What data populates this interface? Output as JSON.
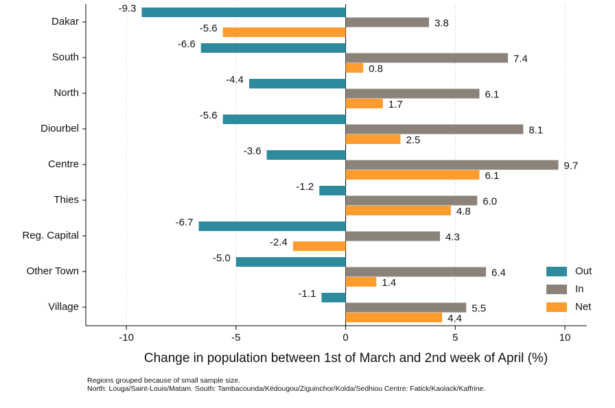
{
  "chart_data": {
    "type": "hbar",
    "xlabel": "Change in population between 1st of March and 2nd week of April (%)",
    "categories": [
      "Dakar",
      "South",
      "North",
      "Diourbel",
      "Centre",
      "Thies",
      "Reg. Capital",
      "Other Town",
      "Village"
    ],
    "series": [
      {
        "name": "Out",
        "color": "#2e8b9d",
        "values": [
          -9.3,
          -6.6,
          -4.4,
          -5.6,
          -3.6,
          -1.2,
          -6.7,
          -5.0,
          -1.1
        ],
        "value_labels": [
          "-9.3",
          "-6.6",
          "-4.4",
          "-5.6",
          "-3.6",
          "-1.2",
          "-6.7",
          "-5.0",
          "-1.1"
        ]
      },
      {
        "name": "In",
        "color": "#8b8279",
        "values": [
          3.8,
          7.4,
          6.1,
          8.1,
          9.7,
          6.0,
          4.3,
          6.4,
          5.5
        ],
        "value_labels": [
          "3.8",
          "7.4",
          "6.1",
          "8.1",
          "9.7",
          "6.0",
          "4.3",
          "6.4",
          "5.5"
        ]
      },
      {
        "name": "Net",
        "color": "#fe9d2e",
        "values": [
          -5.6,
          0.8,
          1.7,
          2.5,
          6.1,
          4.8,
          -2.4,
          1.4,
          4.4
        ],
        "value_labels": [
          "-5.6",
          "0.8",
          "1.7",
          "2.5",
          "6.1",
          "4.8",
          "-2.4",
          "1.4",
          "4.4"
        ]
      }
    ],
    "xlim": [
      -11.85,
      11.0
    ],
    "xticks": [
      -10,
      -5,
      0,
      5,
      10
    ],
    "grid": true,
    "legend": "lower right",
    "notes": [
      "Regions grouped because of small sample size.",
      "North: Louga/Saint-Louis/Matam. South: Tambacounda/Kédougou/Ziguinchor/Kolda/Sedhiou Centre: Fatick/Kaolack/Kaffrine."
    ]
  }
}
